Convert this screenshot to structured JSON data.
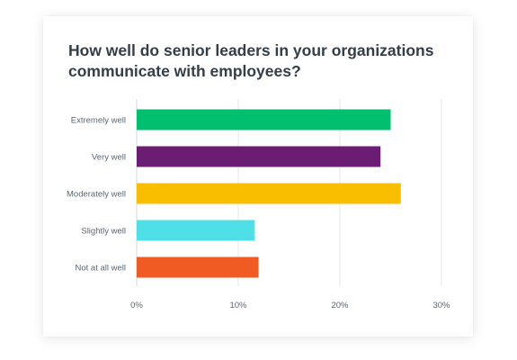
{
  "chart_data": {
    "type": "bar",
    "orientation": "horizontal",
    "title": "How well do senior leaders in your organizations communicate with employees?",
    "categories": [
      "Extremely well",
      "Very well",
      "Moderately well",
      "Slightly well",
      "Not at all well"
    ],
    "values": [
      25,
      24,
      26,
      11.6,
      12
    ],
    "colors": [
      "#00bf6f",
      "#6b1d74",
      "#f9be00",
      "#4ee0e6",
      "#f05b24"
    ],
    "xlim": [
      0,
      30
    ],
    "xticks": [
      0,
      10,
      20,
      30
    ],
    "xtick_labels": [
      "0%",
      "10%",
      "20%",
      "30%"
    ],
    "grid": true
  }
}
